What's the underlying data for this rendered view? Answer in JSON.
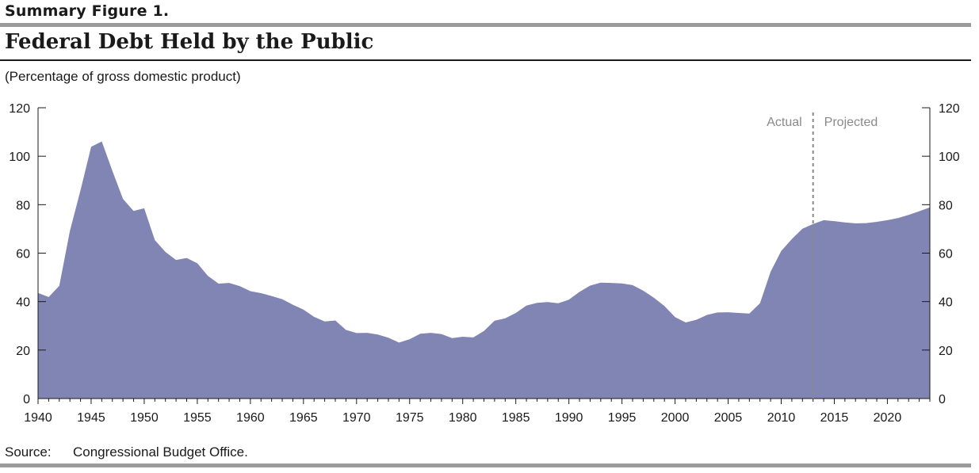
{
  "header": {
    "figure_label": "Summary Figure 1.",
    "title": "Federal Debt Held by the Public",
    "subtitle": "(Percentage of gross domestic product)"
  },
  "footer": {
    "source_label": "Source:",
    "source_value": "Congressional Budget Office."
  },
  "colors": {
    "area_fill": "#8085b3",
    "divider": "#8a8a8a"
  },
  "chart_data": {
    "type": "area",
    "title": "Federal Debt Held by the Public",
    "subtitle": "(Percentage of gross domestic product)",
    "xlabel": "",
    "ylabel": "",
    "xlim": [
      1940,
      2024
    ],
    "ylim": [
      0,
      120
    ],
    "x_ticks": [
      1940,
      1945,
      1950,
      1955,
      1960,
      1965,
      1970,
      1975,
      1980,
      1985,
      1990,
      1995,
      2000,
      2005,
      2010,
      2015,
      2020
    ],
    "y_ticks": [
      0,
      20,
      40,
      60,
      80,
      100,
      120
    ],
    "grid": false,
    "annotations": {
      "divider_year": 2013,
      "actual_label": "Actual",
      "projected_label": "Projected"
    },
    "series": [
      {
        "x": [
          1940,
          1941,
          1942,
          1943,
          1944,
          1945,
          1946,
          1947,
          1948,
          1949,
          1950,
          1951,
          1952,
          1953,
          1954,
          1955,
          1956,
          1957,
          1958,
          1959,
          1960,
          1961,
          1962,
          1963,
          1964,
          1965,
          1966,
          1967,
          1968,
          1969,
          1970,
          1971,
          1972,
          1973,
          1974,
          1975,
          1976,
          1977,
          1978,
          1979,
          1980,
          1981,
          1982,
          1983,
          1984,
          1985,
          1986,
          1987,
          1988,
          1989,
          1990,
          1991,
          1992,
          1993,
          1994,
          1995,
          1996,
          1997,
          1998,
          1999,
          2000,
          2001,
          2002,
          2003,
          2004,
          2005,
          2006,
          2007,
          2008,
          2009,
          2010,
          2011,
          2012,
          2013,
          2014,
          2015,
          2016,
          2017,
          2018,
          2019,
          2020,
          2021,
          2022,
          2023,
          2024
        ],
        "values": [
          43.6,
          41.9,
          46.5,
          69.2,
          86.0,
          103.9,
          106.1,
          93.9,
          82.4,
          77.4,
          78.5,
          65.4,
          60.5,
          57.2,
          58.0,
          55.8,
          50.6,
          47.4,
          47.7,
          46.4,
          44.3,
          43.5,
          42.3,
          41.0,
          38.7,
          36.7,
          33.7,
          31.8,
          32.2,
          28.3,
          27.0,
          27.1,
          26.4,
          25.1,
          23.1,
          24.5,
          26.7,
          27.1,
          26.6,
          24.9,
          25.5,
          25.2,
          27.9,
          32.1,
          33.1,
          35.3,
          38.4,
          39.5,
          39.8,
          39.3,
          40.8,
          44.0,
          46.6,
          47.8,
          47.7,
          47.5,
          46.8,
          44.5,
          41.6,
          38.2,
          33.6,
          31.4,
          32.5,
          34.5,
          35.5,
          35.6,
          35.3,
          35.1,
          39.3,
          52.3,
          60.9,
          65.8,
          70.1,
          72.0,
          73.6,
          73.2,
          72.7,
          72.3,
          72.4,
          72.9,
          73.6,
          74.5,
          75.8,
          77.3,
          78.9
        ]
      }
    ]
  }
}
